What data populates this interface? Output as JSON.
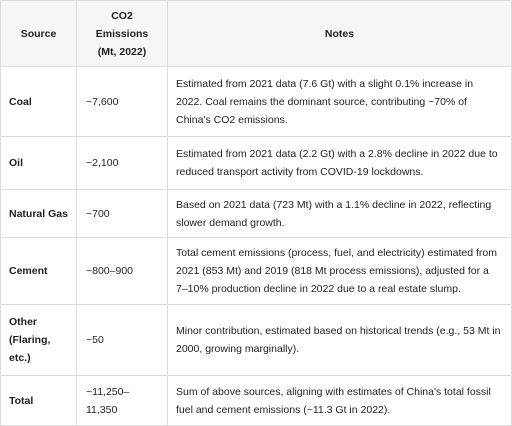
{
  "table": {
    "headers": {
      "source": "Source",
      "emissions": "CO2 Emissions (Mt, 2022)",
      "notes": "Notes"
    },
    "rows": [
      {
        "source": "Coal",
        "emissions": "~7,600",
        "notes": "Estimated from 2021 data (7.6 Gt) with a slight 0.1% increase in 2022. Coal remains the dominant source, contributing ~70% of China's CO2 emissions."
      },
      {
        "source": "Oil",
        "emissions": "~2,100",
        "notes": "Estimated from 2021 data (2.2 Gt) with a 2.8% decline in 2022 due to reduced transport activity from COVID-19 lockdowns."
      },
      {
        "source": "Natural Gas",
        "emissions": "~700",
        "notes": "Based on 2021 data (723 Mt) with a 1.1% decline in 2022, reflecting slower demand growth."
      },
      {
        "source": "Cement",
        "emissions": "~800–900",
        "notes": "Total cement emissions (process, fuel, and electricity) estimated from 2021 (853 Mt) and 2019 (818 Mt process emissions), adjusted for a 7–10% production decline in 2022 due to a real estate slump."
      },
      {
        "source": "Other (Flaring, etc.)",
        "emissions": "~50",
        "notes": "Minor contribution, estimated based on historical trends (e.g., 53 Mt in 2000, growing marginally)."
      },
      {
        "source": "Total",
        "emissions": "~11,250–11,350",
        "notes": "Sum of above sources, aligning with estimates of China's total fossil fuel and cement emissions (~11.3 Gt in 2022)."
      }
    ]
  }
}
